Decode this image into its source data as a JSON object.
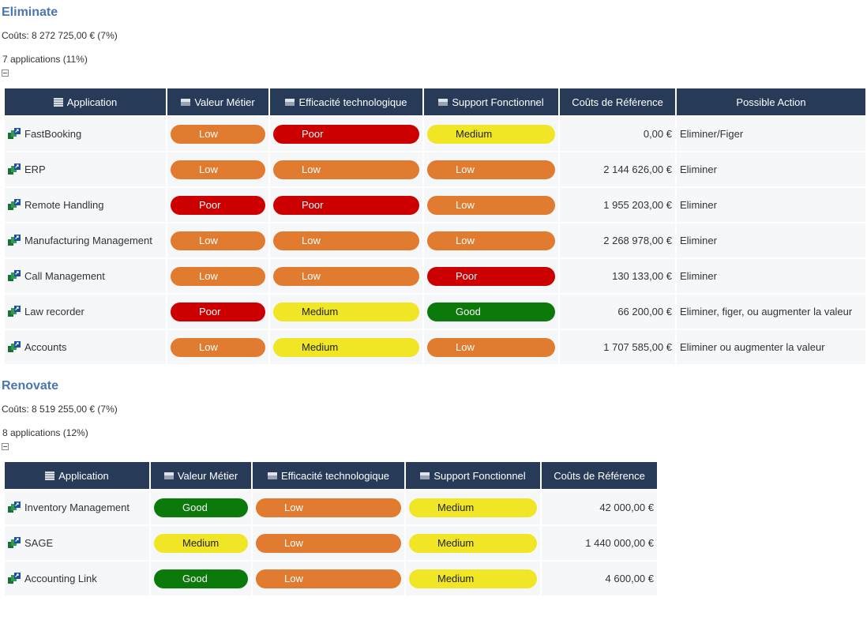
{
  "sections": [
    {
      "title": "Eliminate",
      "costs": "Coûts: 8 272 725,00 € (7%)",
      "apps_count": "7 applications (11%)",
      "headers": {
        "application": "Application",
        "valeur": "Valeur Métier",
        "efficacite": "Efficacité technologique",
        "support": "Support Fonctionnel",
        "couts": "Coûts de Référence",
        "action": "Possible Action"
      },
      "rows": [
        {
          "app": "FastBooking",
          "valeur": "Low",
          "efficacite": "Poor",
          "support": "Medium",
          "cost": "0,00 €",
          "action": "Eliminer/Figer"
        },
        {
          "app": "ERP",
          "valeur": "Low",
          "efficacite": "Low",
          "support": "Low",
          "cost": "2 144 626,00 €",
          "action": "Eliminer"
        },
        {
          "app": "Remote Handling",
          "valeur": "Poor",
          "efficacite": "Poor",
          "support": "Low",
          "cost": "1 955 203,00 €",
          "action": "Eliminer"
        },
        {
          "app": "Manufacturing Management",
          "valeur": "Low",
          "efficacite": "Low",
          "support": "Low",
          "cost": "2 268 978,00 €",
          "action": "Eliminer"
        },
        {
          "app": "Call Management",
          "valeur": "Low",
          "efficacite": "Low",
          "support": "Poor",
          "cost": "130 133,00 €",
          "action": "Eliminer"
        },
        {
          "app": "Law recorder",
          "valeur": "Poor",
          "efficacite": "Medium",
          "support": "Good",
          "cost": "66 200,00 €",
          "action": "Eliminer, figer, ou augmenter la valeur"
        },
        {
          "app": "Accounts",
          "valeur": "Low",
          "efficacite": "Medium",
          "support": "Low",
          "cost": "1 707 585,00 €",
          "action": "Eliminer ou augmenter la valeur"
        }
      ]
    },
    {
      "title": "Renovate",
      "costs": "Coûts: 8 519 255,00 € (7%)",
      "apps_count": "8 applications (12%)",
      "headers": {
        "application": "Application",
        "valeur": "Valeur Métier",
        "efficacite": "Efficacité technologique",
        "support": "Support Fonctionnel",
        "couts": "Coûts de Référence"
      },
      "rows": [
        {
          "app": "Inventory Management",
          "valeur": "Good",
          "efficacite": "Low",
          "support": "Medium",
          "cost": "42 000,00 €"
        },
        {
          "app": "SAGE",
          "valeur": "Medium",
          "efficacite": "Low",
          "support": "Medium",
          "cost": "1 440 000,00 €"
        },
        {
          "app": "Accounting Link",
          "valeur": "Good",
          "efficacite": "Low",
          "support": "Medium",
          "cost": "4 600,00 €"
        }
      ]
    }
  ],
  "colors": {
    "Low": "#e07b30",
    "Poor": "#cc0000",
    "Medium": "#f0e626",
    "Good": "#0b7a0b",
    "header_bg": "#273a58",
    "title": "#4a76b2"
  },
  "icons": {
    "application": "application-icon",
    "table": "table-icon",
    "column": "column-icon",
    "toggle": "collapse-icon"
  }
}
